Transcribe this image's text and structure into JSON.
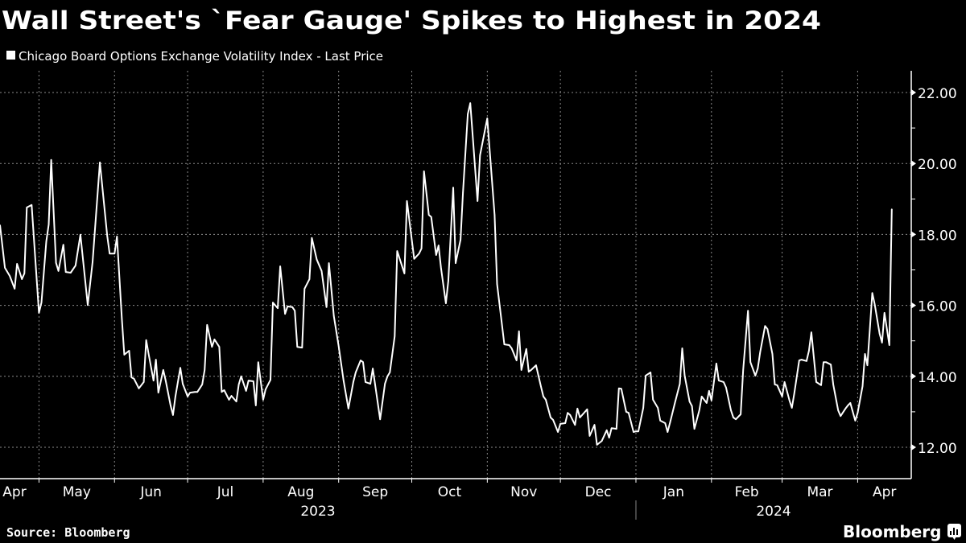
{
  "title": "Wall Street's `Fear Gauge' Spikes to Highest in 2024",
  "source": "Source: Bloomberg",
  "brand": "Bloomberg",
  "colors": {
    "background": "#000000",
    "line": "#ffffff",
    "grid": "#8a8a8a",
    "text": "#ffffff"
  },
  "chart_data": {
    "type": "line",
    "title": "Wall Street's `Fear Gauge' Spikes to Highest in 2024",
    "xlabel": "",
    "ylabel": "",
    "xlim": [
      "2023-04-15",
      "2024-04-23"
    ],
    "ylim": [
      11.1,
      22.6
    ],
    "y_ticks": [
      "12.00",
      "14.00",
      "16.00",
      "18.00",
      "20.00",
      "22.00"
    ],
    "y_axis_side": "right",
    "grid": true,
    "legend": {
      "position": "top-left",
      "entries": [
        "Chicago Board Options Exchange Volatility Index - Last Price"
      ]
    },
    "x_month_labels": [
      {
        "label": "Apr",
        "start": "2023-04-15",
        "end": "2023-05-01"
      },
      {
        "label": "May",
        "start": "2023-05-01",
        "end": "2023-06-01"
      },
      {
        "label": "Jun",
        "start": "2023-06-01",
        "end": "2023-07-01"
      },
      {
        "label": "Jul",
        "start": "2023-07-01",
        "end": "2023-08-01"
      },
      {
        "label": "Aug",
        "start": "2023-08-01",
        "end": "2023-09-01"
      },
      {
        "label": "Sep",
        "start": "2023-09-01",
        "end": "2023-10-01"
      },
      {
        "label": "Oct",
        "start": "2023-10-01",
        "end": "2023-11-01"
      },
      {
        "label": "Nov",
        "start": "2023-11-01",
        "end": "2023-12-01"
      },
      {
        "label": "Dec",
        "start": "2023-12-01",
        "end": "2024-01-01"
      },
      {
        "label": "Jan",
        "start": "2024-01-01",
        "end": "2024-02-01"
      },
      {
        "label": "Feb",
        "start": "2024-02-01",
        "end": "2024-03-01"
      },
      {
        "label": "Mar",
        "start": "2024-03-01",
        "end": "2024-04-01"
      },
      {
        "label": "Apr",
        "start": "2024-04-01",
        "end": "2024-04-23"
      }
    ],
    "x_year_labels": [
      {
        "label": "2023",
        "start": "2023-04-15",
        "end": "2024-01-01"
      },
      {
        "label": "2024",
        "start": "2024-01-01",
        "end": "2024-04-23"
      }
    ],
    "series": [
      {
        "name": "Chicago Board Options Exchange Volatility Index - Last Price",
        "points": [
          [
            "2023-04-15",
            18.26
          ],
          [
            "2023-04-17",
            17.06
          ],
          [
            "2023-04-19",
            16.83
          ],
          [
            "2023-04-21",
            16.47
          ],
          [
            "2023-04-22",
            17.17
          ],
          [
            "2023-04-24",
            16.74
          ],
          [
            "2023-04-25",
            16.9
          ],
          [
            "2023-04-26",
            18.76
          ],
          [
            "2023-04-28",
            18.83
          ],
          [
            "2023-05-01",
            15.79
          ],
          [
            "2023-05-02",
            16.08
          ],
          [
            "2023-05-04",
            17.8
          ],
          [
            "2023-05-05",
            18.28
          ],
          [
            "2023-05-06",
            20.1
          ],
          [
            "2023-05-08",
            17.2
          ],
          [
            "2023-05-09",
            16.97
          ],
          [
            "2023-05-11",
            17.71
          ],
          [
            "2023-05-12",
            16.94
          ],
          [
            "2023-05-14",
            16.92
          ],
          [
            "2023-05-16",
            17.12
          ],
          [
            "2023-05-18",
            17.99
          ],
          [
            "2023-05-21",
            16.01
          ],
          [
            "2023-05-23",
            17.22
          ],
          [
            "2023-05-26",
            20.03
          ],
          [
            "2023-05-29",
            17.96
          ],
          [
            "2023-05-30",
            17.46
          ],
          [
            "2023-06-01",
            17.46
          ],
          [
            "2023-06-02",
            17.94
          ],
          [
            "2023-06-04",
            15.65
          ],
          [
            "2023-06-05",
            14.61
          ],
          [
            "2023-06-07",
            14.72
          ],
          [
            "2023-06-08",
            13.97
          ],
          [
            "2023-06-09",
            13.93
          ],
          [
            "2023-06-11",
            13.66
          ],
          [
            "2023-06-13",
            13.84
          ],
          [
            "2023-06-14",
            15.02
          ],
          [
            "2023-06-15",
            14.63
          ],
          [
            "2023-06-17",
            13.88
          ],
          [
            "2023-06-18",
            14.47
          ],
          [
            "2023-06-19",
            13.54
          ],
          [
            "2023-06-21",
            14.18
          ],
          [
            "2023-06-22",
            13.88
          ],
          [
            "2023-06-24",
            13.18
          ],
          [
            "2023-06-25",
            12.91
          ],
          [
            "2023-06-26",
            13.43
          ],
          [
            "2023-06-28",
            14.24
          ],
          [
            "2023-06-29",
            13.79
          ],
          [
            "2023-07-01",
            13.43
          ],
          [
            "2023-07-02",
            13.54
          ],
          [
            "2023-07-04",
            13.56
          ],
          [
            "2023-07-05",
            13.56
          ],
          [
            "2023-07-07",
            13.77
          ],
          [
            "2023-07-08",
            14.18
          ],
          [
            "2023-07-09",
            15.45
          ],
          [
            "2023-07-11",
            14.83
          ],
          [
            "2023-07-12",
            15.04
          ],
          [
            "2023-07-14",
            14.83
          ],
          [
            "2023-07-15",
            13.56
          ],
          [
            "2023-07-16",
            13.61
          ],
          [
            "2023-07-18",
            13.34
          ],
          [
            "2023-07-19",
            13.45
          ],
          [
            "2023-07-21",
            13.29
          ],
          [
            "2023-07-22",
            13.77
          ],
          [
            "2023-07-23",
            14.0
          ],
          [
            "2023-07-25",
            13.59
          ],
          [
            "2023-07-26",
            13.88
          ],
          [
            "2023-07-28",
            13.86
          ],
          [
            "2023-07-29",
            13.18
          ],
          [
            "2023-07-30",
            14.4
          ],
          [
            "2023-08-01",
            13.34
          ],
          [
            "2023-08-02",
            13.63
          ],
          [
            "2023-08-04",
            13.9
          ],
          [
            "2023-08-05",
            16.08
          ],
          [
            "2023-08-07",
            15.92
          ],
          [
            "2023-08-08",
            17.1
          ],
          [
            "2023-08-10",
            15.76
          ],
          [
            "2023-08-11",
            15.97
          ],
          [
            "2023-08-13",
            15.95
          ],
          [
            "2023-08-14",
            15.85
          ],
          [
            "2023-08-15",
            14.83
          ],
          [
            "2023-08-17",
            14.81
          ],
          [
            "2023-08-18",
            16.47
          ],
          [
            "2023-08-20",
            16.74
          ],
          [
            "2023-08-21",
            17.9
          ],
          [
            "2023-08-23",
            17.29
          ],
          [
            "2023-08-25",
            16.97
          ],
          [
            "2023-08-27",
            15.95
          ],
          [
            "2023-08-28",
            17.19
          ],
          [
            "2023-08-30",
            15.7
          ],
          [
            "2023-09-01",
            14.85
          ],
          [
            "2023-09-03",
            13.88
          ],
          [
            "2023-09-05",
            13.09
          ],
          [
            "2023-09-07",
            13.84
          ],
          [
            "2023-09-08",
            14.11
          ],
          [
            "2023-09-10",
            14.45
          ],
          [
            "2023-09-11",
            14.4
          ],
          [
            "2023-09-12",
            13.84
          ],
          [
            "2023-09-14",
            13.79
          ],
          [
            "2023-09-15",
            14.22
          ],
          [
            "2023-09-18",
            12.79
          ],
          [
            "2023-09-20",
            13.79
          ],
          [
            "2023-09-21",
            14.0
          ],
          [
            "2023-09-22",
            14.11
          ],
          [
            "2023-09-24",
            15.13
          ],
          [
            "2023-09-25",
            17.53
          ],
          [
            "2023-09-28",
            16.9
          ],
          [
            "2023-09-29",
            18.94
          ],
          [
            "2023-10-02",
            17.31
          ],
          [
            "2023-10-04",
            17.46
          ],
          [
            "2023-10-05",
            17.6
          ],
          [
            "2023-10-06",
            19.78
          ],
          [
            "2023-10-08",
            18.55
          ],
          [
            "2023-10-09",
            18.49
          ],
          [
            "2023-10-11",
            17.42
          ],
          [
            "2023-10-12",
            17.69
          ],
          [
            "2023-10-13",
            17.06
          ],
          [
            "2023-10-15",
            16.06
          ],
          [
            "2023-10-16",
            16.69
          ],
          [
            "2023-10-18",
            19.32
          ],
          [
            "2023-10-19",
            17.19
          ],
          [
            "2023-10-21",
            17.85
          ],
          [
            "2023-10-22",
            19.17
          ],
          [
            "2023-10-24",
            21.39
          ],
          [
            "2023-10-25",
            21.7
          ],
          [
            "2023-10-28",
            18.94
          ],
          [
            "2023-10-29",
            20.23
          ],
          [
            "2023-11-01",
            21.27
          ],
          [
            "2023-11-04",
            18.55
          ],
          [
            "2023-11-05",
            16.6
          ],
          [
            "2023-11-08",
            14.9
          ],
          [
            "2023-11-10",
            14.88
          ],
          [
            "2023-11-11",
            14.79
          ],
          [
            "2023-11-13",
            14.45
          ],
          [
            "2023-11-14",
            15.27
          ],
          [
            "2023-11-15",
            14.18
          ],
          [
            "2023-11-17",
            14.77
          ],
          [
            "2023-11-18",
            14.13
          ],
          [
            "2023-11-19",
            14.18
          ],
          [
            "2023-11-21",
            14.31
          ],
          [
            "2023-11-23",
            13.72
          ],
          [
            "2023-11-24",
            13.43
          ],
          [
            "2023-11-25",
            13.34
          ],
          [
            "2023-11-27",
            12.84
          ],
          [
            "2023-11-28",
            12.77
          ],
          [
            "2023-11-30",
            12.43
          ],
          [
            "2023-12-01",
            12.66
          ],
          [
            "2023-12-03",
            12.68
          ],
          [
            "2023-12-04",
            12.97
          ],
          [
            "2023-12-05",
            12.91
          ],
          [
            "2023-12-07",
            12.63
          ],
          [
            "2023-12-08",
            13.09
          ],
          [
            "2023-12-09",
            12.84
          ],
          [
            "2023-12-12",
            13.07
          ],
          [
            "2023-12-13",
            12.32
          ],
          [
            "2023-12-15",
            12.63
          ],
          [
            "2023-12-16",
            12.07
          ],
          [
            "2023-12-18",
            12.18
          ],
          [
            "2023-12-20",
            12.48
          ],
          [
            "2023-12-21",
            12.27
          ],
          [
            "2023-12-22",
            12.54
          ],
          [
            "2023-12-24",
            12.52
          ],
          [
            "2023-12-25",
            13.66
          ],
          [
            "2023-12-26",
            13.65
          ],
          [
            "2023-12-28",
            13.0
          ],
          [
            "2023-12-29",
            12.97
          ],
          [
            "2023-12-31",
            12.43
          ],
          [
            "2024-01-01",
            12.45
          ],
          [
            "2024-01-02",
            12.45
          ],
          [
            "2024-01-04",
            13.11
          ],
          [
            "2024-01-05",
            14.02
          ],
          [
            "2024-01-07",
            14.11
          ],
          [
            "2024-01-08",
            13.34
          ],
          [
            "2024-01-10",
            13.11
          ],
          [
            "2024-01-11",
            12.75
          ],
          [
            "2024-01-13",
            12.68
          ],
          [
            "2024-01-14",
            12.43
          ],
          [
            "2024-01-15",
            12.7
          ],
          [
            "2024-01-17",
            13.25
          ],
          [
            "2024-01-19",
            13.79
          ],
          [
            "2024-01-20",
            14.79
          ],
          [
            "2024-01-21",
            14.02
          ],
          [
            "2024-01-23",
            13.29
          ],
          [
            "2024-01-24",
            13.16
          ],
          [
            "2024-01-25",
            12.52
          ],
          [
            "2024-01-27",
            13.04
          ],
          [
            "2024-01-28",
            13.43
          ],
          [
            "2024-01-30",
            13.25
          ],
          [
            "2024-01-31",
            13.59
          ],
          [
            "2024-02-01",
            13.32
          ],
          [
            "2024-02-03",
            14.36
          ],
          [
            "2024-02-04",
            13.88
          ],
          [
            "2024-02-06",
            13.84
          ],
          [
            "2024-02-07",
            13.68
          ],
          [
            "2024-02-09",
            13.04
          ],
          [
            "2024-02-10",
            12.84
          ],
          [
            "2024-02-11",
            12.79
          ],
          [
            "2024-02-13",
            12.93
          ],
          [
            "2024-02-14",
            14.18
          ],
          [
            "2024-02-16",
            15.85
          ],
          [
            "2024-02-17",
            14.4
          ],
          [
            "2024-02-19",
            14.02
          ],
          [
            "2024-02-20",
            14.22
          ],
          [
            "2024-02-21",
            14.68
          ],
          [
            "2024-02-23",
            15.42
          ],
          [
            "2024-02-24",
            15.33
          ],
          [
            "2024-02-26",
            14.63
          ],
          [
            "2024-02-27",
            13.77
          ],
          [
            "2024-02-28",
            13.75
          ],
          [
            "2024-03-01",
            13.43
          ],
          [
            "2024-03-02",
            13.84
          ],
          [
            "2024-03-04",
            13.32
          ],
          [
            "2024-03-05",
            13.11
          ],
          [
            "2024-03-06",
            13.52
          ],
          [
            "2024-03-08",
            14.45
          ],
          [
            "2024-03-09",
            14.47
          ],
          [
            "2024-03-11",
            14.43
          ],
          [
            "2024-03-12",
            14.72
          ],
          [
            "2024-03-13",
            15.24
          ],
          [
            "2024-03-15",
            13.84
          ],
          [
            "2024-03-17",
            13.75
          ],
          [
            "2024-03-18",
            14.4
          ],
          [
            "2024-03-19",
            14.4
          ],
          [
            "2024-03-21",
            14.33
          ],
          [
            "2024-03-22",
            13.77
          ],
          [
            "2024-03-24",
            13.04
          ],
          [
            "2024-03-25",
            12.88
          ],
          [
            "2024-03-27",
            13.09
          ],
          [
            "2024-03-28",
            13.18
          ],
          [
            "2024-03-29",
            13.25
          ],
          [
            "2024-03-31",
            12.75
          ],
          [
            "2024-04-01",
            12.97
          ],
          [
            "2024-04-03",
            13.72
          ],
          [
            "2024-04-04",
            14.63
          ],
          [
            "2024-04-05",
            14.31
          ],
          [
            "2024-04-07",
            16.35
          ],
          [
            "2024-04-08",
            16.03
          ],
          [
            "2024-04-10",
            15.2
          ],
          [
            "2024-04-11",
            14.95
          ],
          [
            "2024-04-12",
            15.79
          ],
          [
            "2024-04-14",
            14.88
          ],
          [
            "2024-04-15",
            18.71
          ]
        ]
      }
    ]
  }
}
